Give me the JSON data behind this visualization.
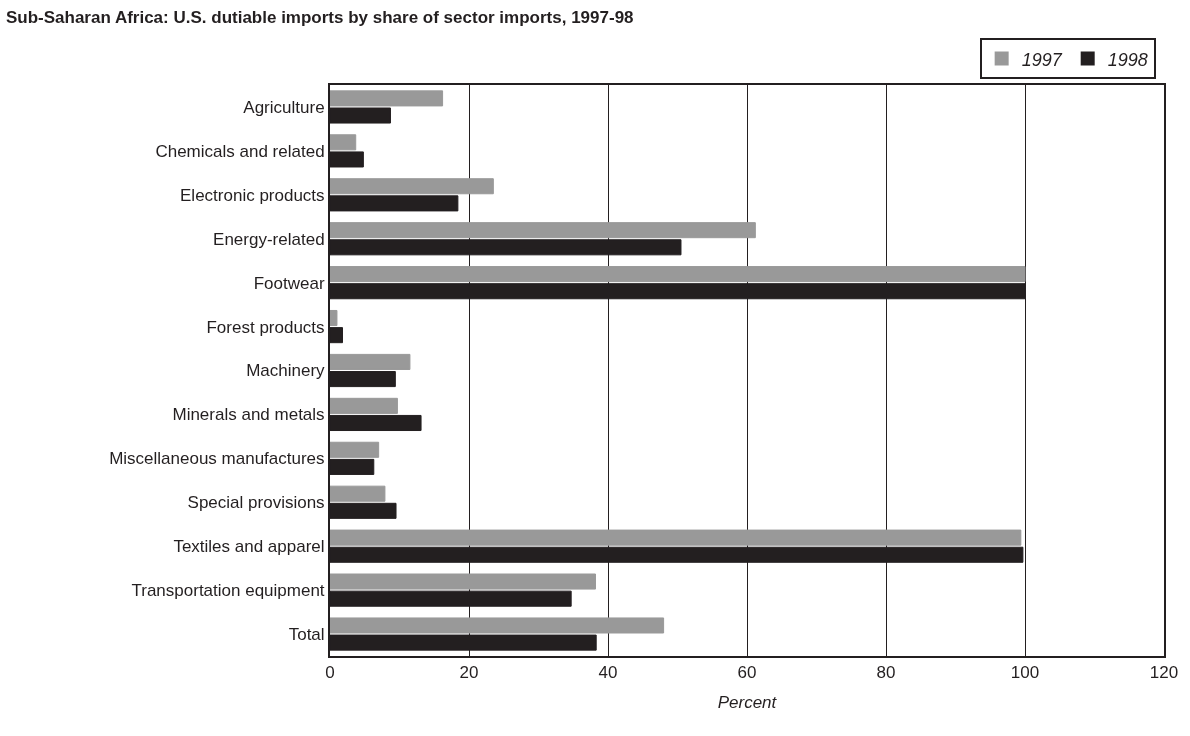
{
  "chart_data": {
    "type": "bar",
    "orientation": "horizontal",
    "title": "Sub-Saharan Africa: U.S. dutiable imports by share of sector imports, 1997-98",
    "xlabel": "Percent",
    "categories": [
      "Agriculture",
      "Chemicals and related",
      "Electronic products",
      "Energy-related",
      "Footwear",
      "Forest products",
      "Machinery",
      "Minerals and metals",
      "Miscellaneous manufactures",
      "Special provisions",
      "Textiles and apparel",
      "Transportation equipment",
      "Total"
    ],
    "series": [
      {
        "name": "1997",
        "color": "#999999",
        "values": [
          16.2,
          3.7,
          23.5,
          61.2,
          100,
          1.0,
          11.5,
          9.7,
          7.0,
          7.9,
          99.4,
          38.2,
          48.0
        ]
      },
      {
        "name": "1998",
        "color": "#231f20",
        "values": [
          8.7,
          4.8,
          18.4,
          50.5,
          100,
          1.8,
          9.4,
          13.1,
          6.3,
          9.5,
          99.7,
          34.7,
          38.3
        ]
      }
    ],
    "xlim": [
      0,
      120
    ],
    "xticks": [
      0,
      20,
      40,
      60,
      80,
      100,
      120
    ],
    "grid": "x",
    "legend": "top right"
  }
}
